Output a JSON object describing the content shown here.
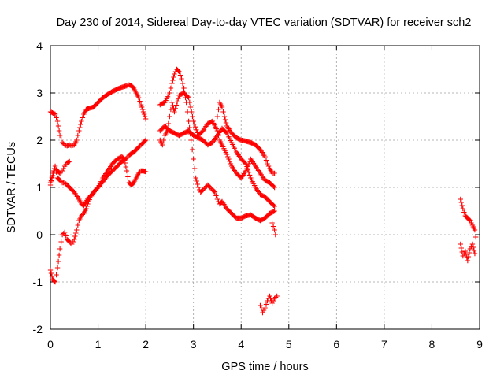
{
  "chart_data": {
    "type": "scatter",
    "title": "Day 230 of 2014, Sidereal Day-to-day VTEC variation (SDTVAR) for receiver sch2",
    "xlabel": "GPS time / hours",
    "ylabel": "SDTVAR / TECUs",
    "xlim": [
      0,
      9
    ],
    "ylim": [
      -2,
      4
    ],
    "xticks": [
      "0",
      "1",
      "2",
      "3",
      "4",
      "5",
      "6",
      "7",
      "8",
      "9"
    ],
    "yticks": [
      "-2",
      "-1",
      "0",
      "1",
      "2",
      "3",
      "4"
    ],
    "grid": true,
    "marker": "plus",
    "color": "#ff0000",
    "series": [
      {
        "x": [
          0.0,
          0.1,
          0.15,
          0.2,
          0.25,
          0.3,
          0.35,
          0.4,
          0.45,
          0.5,
          0.55,
          0.6,
          0.65,
          0.7,
          0.75,
          0.8,
          0.9,
          1.0,
          1.1,
          1.2,
          1.3,
          1.4,
          1.5,
          1.6,
          1.65,
          1.7,
          1.75,
          1.8,
          1.85,
          1.9,
          1.95,
          2.0
        ],
        "y": [
          2.6,
          2.55,
          2.4,
          2.1,
          1.95,
          1.9,
          1.88,
          1.9,
          1.88,
          1.9,
          2.0,
          2.2,
          2.4,
          2.55,
          2.65,
          2.67,
          2.7,
          2.8,
          2.9,
          2.97,
          3.03,
          3.08,
          3.12,
          3.15,
          3.17,
          3.15,
          3.1,
          3.0,
          2.9,
          2.75,
          2.6,
          2.45
        ]
      },
      {
        "x": [
          0.0,
          0.05,
          0.1,
          0.15,
          0.2,
          0.25,
          0.3,
          0.35,
          0.4,
          0.5,
          0.6,
          0.65,
          0.7,
          0.75,
          0.8,
          0.9,
          1.0,
          1.1,
          1.2,
          1.3,
          1.4,
          1.5,
          1.6,
          1.65,
          1.7,
          1.75,
          1.8,
          1.85,
          1.9,
          1.95,
          2.0
        ],
        "y": [
          1.05,
          1.3,
          1.45,
          1.2,
          1.15,
          1.1,
          1.1,
          1.05,
          1.0,
          0.9,
          0.75,
          0.65,
          0.62,
          0.7,
          0.78,
          0.88,
          1.0,
          1.12,
          1.25,
          1.35,
          1.45,
          1.55,
          1.62,
          1.68,
          1.72,
          1.75,
          1.8,
          1.85,
          1.9,
          1.95,
          2.0
        ]
      },
      {
        "x": [
          0.0,
          0.05,
          0.1,
          0.15,
          0.2,
          0.25,
          0.3,
          0.35,
          0.4,
          0.45,
          0.5,
          0.55,
          0.6,
          0.65,
          0.7,
          0.75,
          0.8,
          0.9,
          1.0,
          1.1,
          1.2,
          1.3,
          1.4,
          1.5,
          1.55,
          1.6,
          1.65,
          1.7,
          1.75,
          1.8,
          1.85,
          1.9,
          1.95,
          2.0
        ],
        "y": [
          -0.75,
          -0.95,
          -1.0,
          -0.7,
          -0.3,
          0.0,
          0.05,
          -0.1,
          -0.15,
          -0.2,
          -0.1,
          0.1,
          0.3,
          0.4,
          0.45,
          0.55,
          0.7,
          0.9,
          1.0,
          1.2,
          1.35,
          1.5,
          1.6,
          1.65,
          1.6,
          1.35,
          1.1,
          1.05,
          1.1,
          1.2,
          1.3,
          1.35,
          1.35,
          1.33
        ]
      },
      {
        "x": [
          0.0,
          0.05,
          0.1,
          0.15,
          0.2,
          0.25,
          0.3,
          0.35,
          0.4
        ],
        "y": [
          1.1,
          1.25,
          1.4,
          1.35,
          1.3,
          1.35,
          1.45,
          1.52,
          1.55
        ]
      },
      {
        "x": [
          2.3,
          2.4,
          2.5,
          2.55,
          2.6,
          2.65,
          2.7,
          2.75,
          2.8,
          2.85,
          2.9,
          2.95,
          3.0,
          3.05,
          3.1,
          3.15,
          3.2,
          3.25,
          3.3,
          3.35,
          3.4,
          3.45,
          3.5,
          3.55,
          3.6,
          3.7,
          3.8,
          3.9,
          4.0,
          4.1,
          4.2,
          4.3,
          4.4,
          4.5,
          4.6,
          4.7
        ],
        "y": [
          2.75,
          2.8,
          3.0,
          3.2,
          3.4,
          3.5,
          3.45,
          3.3,
          3.1,
          2.8,
          2.4,
          2.0,
          1.6,
          1.2,
          1.0,
          0.9,
          0.95,
          1.0,
          1.05,
          1.0,
          0.95,
          0.9,
          0.75,
          0.65,
          0.7,
          0.55,
          0.45,
          0.35,
          0.35,
          0.4,
          0.42,
          0.35,
          0.3,
          0.35,
          0.45,
          0.5
        ]
      },
      {
        "x": [
          2.3,
          2.35,
          2.4,
          2.45,
          2.5,
          2.55,
          2.6,
          2.7,
          2.8,
          2.9,
          3.0,
          3.1,
          3.2,
          3.3,
          3.4,
          3.5,
          3.55,
          3.6,
          3.7,
          3.8,
          3.9,
          4.0,
          4.1,
          4.2,
          4.3,
          4.4,
          4.5,
          4.6,
          4.7
        ],
        "y": [
          2.0,
          1.9,
          2.1,
          2.2,
          2.5,
          2.8,
          2.6,
          2.95,
          3.0,
          2.9,
          2.4,
          2.1,
          2.2,
          2.35,
          2.4,
          2.2,
          2.0,
          1.9,
          1.7,
          1.45,
          1.3,
          1.2,
          1.35,
          1.6,
          1.45,
          1.3,
          1.15,
          1.1,
          1.0
        ]
      },
      {
        "x": [
          2.3,
          2.4,
          2.5,
          2.6,
          2.7,
          2.8,
          2.9,
          3.0,
          3.1,
          3.2,
          3.3,
          3.4,
          3.5,
          3.6,
          3.7,
          3.8,
          3.9,
          4.0,
          4.1,
          4.2,
          4.3,
          4.4,
          4.5,
          4.6,
          4.7
        ],
        "y": [
          2.2,
          2.3,
          2.2,
          2.15,
          2.1,
          2.15,
          2.2,
          2.1,
          2.05,
          2.0,
          1.9,
          1.95,
          2.1,
          2.25,
          2.15,
          1.95,
          1.75,
          1.6,
          1.5,
          1.2,
          1.0,
          0.85,
          0.8,
          0.7,
          0.6
        ]
      },
      {
        "x": [
          3.5,
          3.55,
          3.6,
          3.65,
          3.7,
          3.8,
          3.9,
          4.0,
          4.1,
          4.2,
          4.3,
          4.4,
          4.5,
          4.55,
          4.6,
          4.65,
          4.7
        ],
        "y": [
          2.5,
          2.8,
          2.7,
          2.5,
          2.3,
          2.15,
          2.05,
          2.0,
          1.98,
          1.95,
          1.9,
          1.8,
          1.65,
          1.5,
          1.4,
          1.3,
          1.3
        ]
      },
      {
        "x": [
          4.4,
          4.45,
          4.5,
          4.55,
          4.6,
          4.65,
          4.7,
          4.75
        ],
        "y": [
          -1.5,
          -1.65,
          -1.55,
          -1.4,
          -1.3,
          -1.45,
          -1.35,
          -1.3
        ]
      },
      {
        "x": [
          4.65,
          4.7,
          4.72
        ],
        "y": [
          0.25,
          0.1,
          0.0
        ]
      },
      {
        "x": [
          8.6,
          8.65,
          8.7,
          8.75,
          8.8,
          8.85,
          8.9,
          8.92
        ],
        "y": [
          0.75,
          0.55,
          0.4,
          0.35,
          0.3,
          0.2,
          0.1,
          -0.05
        ]
      },
      {
        "x": [
          8.6,
          8.65,
          8.7,
          8.75,
          8.8,
          8.85,
          8.9
        ],
        "y": [
          -0.2,
          -0.45,
          -0.35,
          -0.55,
          -0.3,
          -0.2,
          -0.4
        ]
      }
    ]
  }
}
